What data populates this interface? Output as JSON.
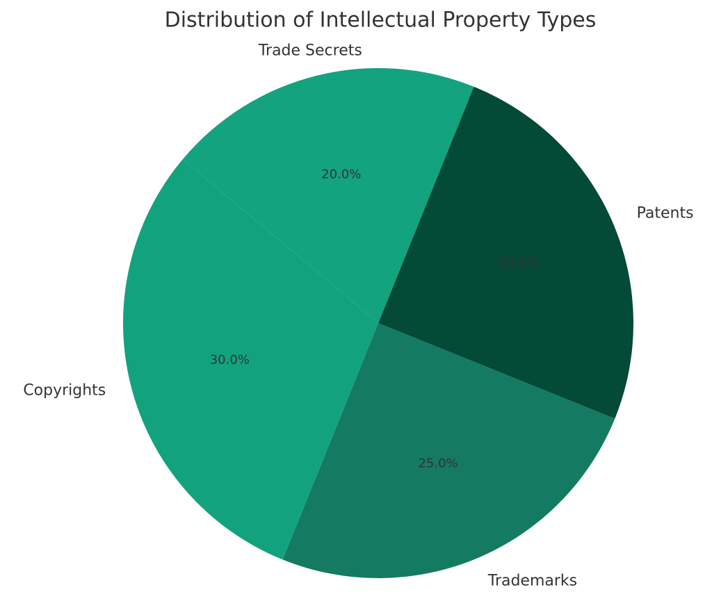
{
  "chart_data": {
    "type": "pie",
    "title": "Distribution of Intellectual Property Types",
    "categories": [
      "Patents",
      "Trademarks",
      "Copyrights",
      "Trade Secrets"
    ],
    "values": [
      25,
      25,
      30,
      20
    ],
    "value_labels": [
      "25.0%",
      "25.0%",
      "30.0%",
      "20.0%"
    ],
    "colors": [
      "#034a37",
      "#157a62",
      "#12a37e",
      "#13a37f"
    ]
  }
}
